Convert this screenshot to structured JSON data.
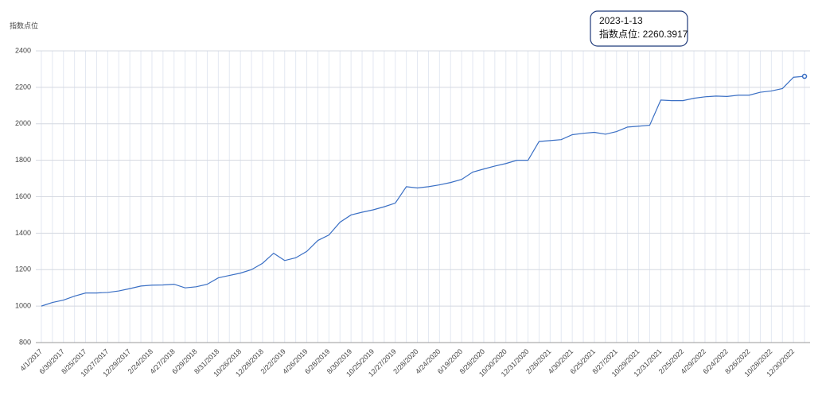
{
  "chart_data": {
    "type": "line",
    "y_axis_label": "指数点位",
    "categories": [
      "4/1/2017",
      null,
      "6/30/2017",
      null,
      "8/25/2017",
      null,
      "10/27/2017",
      null,
      "12/29/2017",
      null,
      "2/24/2018",
      null,
      "4/27/2018",
      null,
      "6/29/2018",
      null,
      "8/31/2018",
      null,
      "10/26/2018",
      null,
      "12/28/2018",
      null,
      "2/22/2019",
      null,
      "4/26/2019",
      null,
      "6/28/2019",
      null,
      "8/30/2019",
      null,
      "10/25/2019",
      null,
      "12/27/2019",
      null,
      "2/28/2020",
      null,
      "4/24/2020",
      null,
      "6/19/2020",
      null,
      "8/28/2020",
      null,
      "10/30/2020",
      null,
      "12/31/2020",
      null,
      "2/26/2021",
      null,
      "4/30/2021",
      null,
      "6/25/2021",
      null,
      "8/27/2021",
      null,
      "10/29/2021",
      null,
      "12/31/2021",
      null,
      "2/25/2022",
      null,
      "4/29/2022",
      null,
      "6/24/2022",
      null,
      "8/26/2022",
      null,
      "10/28/2022",
      null,
      "12/30/2022",
      null
    ],
    "series": [
      {
        "name": "指数点位",
        "color": "#3a6fc4",
        "values": [
          1000,
          1020,
          1033,
          1055,
          1072,
          1072,
          1075,
          1083,
          1096,
          1110,
          1115,
          1116,
          1120,
          1100,
          1106,
          1120,
          1155,
          1168,
          1181,
          1200,
          1235,
          1290,
          1250,
          1265,
          1300,
          1360,
          1390,
          1460,
          1500,
          1515,
          1528,
          1545,
          1565,
          1655,
          1648,
          1655,
          1665,
          1678,
          1695,
          1735,
          1752,
          1768,
          1782,
          1800,
          1800,
          1903,
          1908,
          1913,
          1940,
          1948,
          1953,
          1943,
          1957,
          1982,
          1987,
          1992,
          2130,
          2127,
          2127,
          2140,
          2148,
          2152,
          2150,
          2157,
          2157,
          2173,
          2180,
          2193,
          2255,
          2260.3917
        ]
      }
    ],
    "ylim": [
      800,
      2400
    ],
    "yticks": [
      800,
      1000,
      1200,
      1400,
      1600,
      1800,
      2000,
      2200,
      2400
    ],
    "grid": true,
    "tooltip": {
      "title": "2023-1-13",
      "text": "指数点位: 2260.3917"
    }
  }
}
